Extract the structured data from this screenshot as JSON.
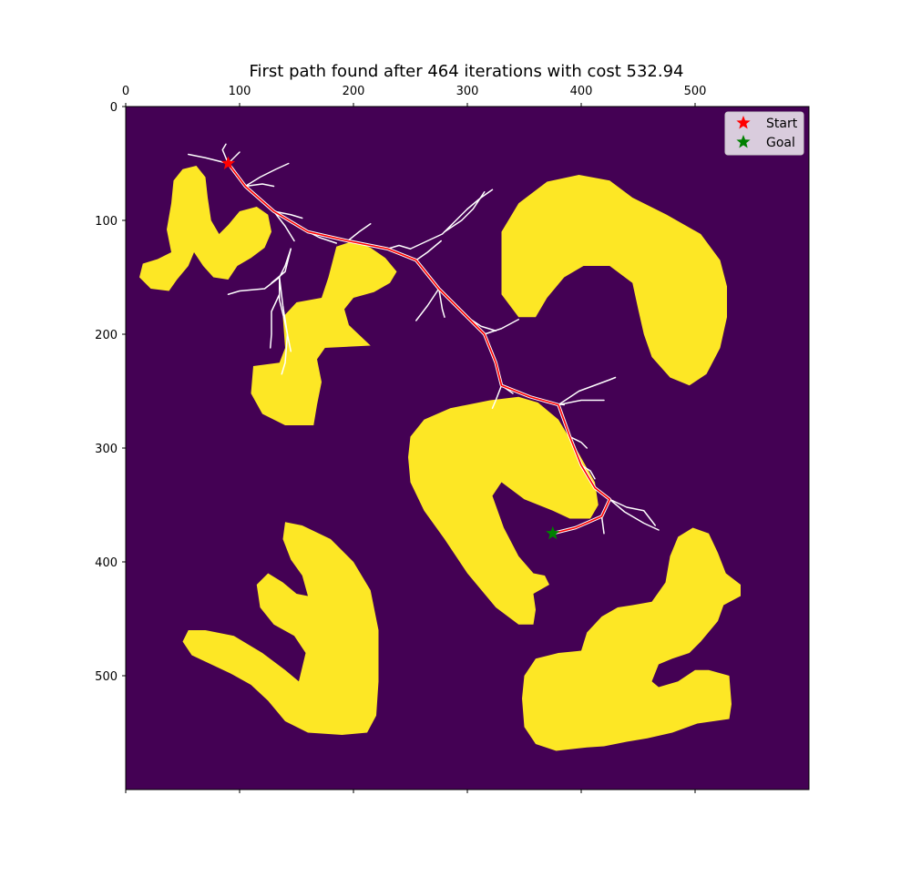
{
  "chart_data": {
    "type": "heatmap",
    "title": "First path found after 464 iterations with cost 532.94",
    "xlabel": "",
    "ylabel": "",
    "xlim": [
      0,
      600
    ],
    "ylim": [
      600,
      0
    ],
    "x_ticks": [
      0,
      100,
      200,
      300,
      400,
      500
    ],
    "y_ticks": [
      0,
      100,
      200,
      300,
      400,
      500
    ],
    "x_axis_position": "top",
    "grid": false,
    "legend": {
      "placement": "top-right",
      "entries": [
        "Start",
        "Goal"
      ]
    },
    "colors": {
      "free_space": "#440154",
      "obstacle": "#fde725",
      "tree": "#ffffff",
      "path": "#ff0000",
      "start_marker": "#ff0000",
      "goal_marker": "#008000"
    },
    "start": {
      "label": "Start",
      "x": 90,
      "y": 50
    },
    "goal": {
      "label": "Goal",
      "x": 375,
      "y": 375
    },
    "path": [
      [
        90,
        50
      ],
      [
        105,
        70
      ],
      [
        130,
        92
      ],
      [
        160,
        110
      ],
      [
        195,
        118
      ],
      [
        230,
        125
      ],
      [
        255,
        135
      ],
      [
        275,
        160
      ],
      [
        300,
        185
      ],
      [
        315,
        200
      ],
      [
        325,
        225
      ],
      [
        330,
        245
      ],
      [
        355,
        255
      ],
      [
        380,
        262
      ],
      [
        390,
        290
      ],
      [
        400,
        315
      ],
      [
        412,
        335
      ],
      [
        425,
        345
      ],
      [
        418,
        360
      ],
      [
        395,
        370
      ],
      [
        375,
        375
      ]
    ],
    "tree_branches": [
      [
        [
          90,
          50
        ],
        [
          70,
          45
        ],
        [
          55,
          42
        ]
      ],
      [
        [
          90,
          50
        ],
        [
          85,
          38
        ],
        [
          88,
          33
        ]
      ],
      [
        [
          90,
          50
        ],
        [
          100,
          40
        ]
      ],
      [
        [
          105,
          70
        ],
        [
          120,
          68
        ],
        [
          130,
          70
        ]
      ],
      [
        [
          105,
          70
        ],
        [
          118,
          62
        ],
        [
          132,
          55
        ],
        [
          143,
          50
        ]
      ],
      [
        [
          130,
          92
        ],
        [
          145,
          95
        ],
        [
          155,
          98
        ]
      ],
      [
        [
          130,
          92
        ],
        [
          140,
          105
        ],
        [
          148,
          118
        ]
      ],
      [
        [
          160,
          110
        ],
        [
          170,
          115
        ],
        [
          185,
          120
        ]
      ],
      [
        [
          145,
          125
        ],
        [
          140,
          140
        ],
        [
          135,
          150
        ],
        [
          122,
          160
        ],
        [
          100,
          162
        ],
        [
          90,
          165
        ]
      ],
      [
        [
          145,
          125
        ],
        [
          140,
          145
        ],
        [
          128,
          155
        ]
      ],
      [
        [
          135,
          150
        ],
        [
          135,
          170
        ],
        [
          140,
          190
        ],
        [
          145,
          215
        ]
      ],
      [
        [
          135,
          150
        ],
        [
          138,
          175
        ],
        [
          142,
          200
        ],
        [
          140,
          225
        ],
        [
          137,
          235
        ]
      ],
      [
        [
          135,
          165
        ],
        [
          128,
          180
        ],
        [
          128,
          200
        ],
        [
          127,
          212
        ]
      ],
      [
        [
          195,
          118
        ],
        [
          205,
          110
        ],
        [
          215,
          103
        ]
      ],
      [
        [
          230,
          125
        ],
        [
          240,
          122
        ],
        [
          250,
          125
        ]
      ],
      [
        [
          255,
          135
        ],
        [
          265,
          128
        ],
        [
          277,
          118
        ]
      ],
      [
        [
          250,
          125
        ],
        [
          265,
          118
        ],
        [
          278,
          112
        ],
        [
          290,
          100
        ],
        [
          300,
          90
        ]
      ],
      [
        [
          280,
          110
        ],
        [
          295,
          100
        ],
        [
          305,
          90
        ],
        [
          315,
          75
        ]
      ],
      [
        [
          300,
          90
        ],
        [
          312,
          80
        ],
        [
          322,
          73
        ]
      ],
      [
        [
          275,
          160
        ],
        [
          265,
          175
        ],
        [
          255,
          188
        ]
      ],
      [
        [
          275,
          160
        ],
        [
          278,
          178
        ],
        [
          280,
          185
        ]
      ],
      [
        [
          300,
          185
        ],
        [
          312,
          193
        ],
        [
          325,
          197
        ]
      ],
      [
        [
          315,
          200
        ],
        [
          330,
          195
        ],
        [
          345,
          187
        ]
      ],
      [
        [
          330,
          245
        ],
        [
          325,
          258
        ],
        [
          322,
          265
        ]
      ],
      [
        [
          330,
          245
        ],
        [
          340,
          252
        ]
      ],
      [
        [
          355,
          255
        ],
        [
          370,
          260
        ],
        [
          385,
          262
        ]
      ],
      [
        [
          380,
          262
        ],
        [
          400,
          258
        ],
        [
          420,
          258
        ]
      ],
      [
        [
          380,
          262
        ],
        [
          398,
          250
        ],
        [
          425,
          240
        ],
        [
          430,
          238
        ]
      ],
      [
        [
          390,
          290
        ],
        [
          400,
          295
        ],
        [
          405,
          300
        ]
      ],
      [
        [
          400,
          315
        ],
        [
          408,
          320
        ],
        [
          412,
          327
        ]
      ],
      [
        [
          425,
          345
        ],
        [
          440,
          352
        ],
        [
          455,
          355
        ],
        [
          465,
          368
        ]
      ],
      [
        [
          425,
          345
        ],
        [
          438,
          356
        ],
        [
          455,
          366
        ],
        [
          468,
          372
        ]
      ],
      [
        [
          418,
          360
        ],
        [
          420,
          375
        ]
      ]
    ],
    "obstacles": [
      [
        [
          50,
          55
        ],
        [
          62,
          52
        ],
        [
          70,
          62
        ],
        [
          72,
          80
        ],
        [
          75,
          100
        ],
        [
          82,
          112
        ],
        [
          90,
          104
        ],
        [
          100,
          92
        ],
        [
          115,
          88
        ],
        [
          125,
          95
        ],
        [
          128,
          110
        ],
        [
          122,
          124
        ],
        [
          110,
          133
        ],
        [
          98,
          140
        ],
        [
          90,
          152
        ],
        [
          77,
          150
        ],
        [
          68,
          140
        ],
        [
          60,
          128
        ],
        [
          55,
          140
        ],
        [
          45,
          152
        ],
        [
          38,
          162
        ],
        [
          22,
          160
        ],
        [
          12,
          150
        ],
        [
          15,
          138
        ],
        [
          28,
          134
        ],
        [
          40,
          128
        ],
        [
          36,
          108
        ],
        [
          40,
          85
        ],
        [
          42,
          65
        ]
      ],
      [
        [
          185,
          123
        ],
        [
          200,
          118
        ],
        [
          215,
          124
        ],
        [
          228,
          133
        ],
        [
          238,
          145
        ],
        [
          232,
          155
        ],
        [
          218,
          163
        ],
        [
          200,
          168
        ],
        [
          192,
          178
        ],
        [
          196,
          192
        ],
        [
          215,
          210
        ],
        [
          175,
          212
        ],
        [
          168,
          222
        ],
        [
          172,
          242
        ],
        [
          168,
          262
        ],
        [
          165,
          280
        ],
        [
          140,
          280
        ],
        [
          120,
          270
        ],
        [
          110,
          252
        ],
        [
          112,
          228
        ],
        [
          135,
          225
        ],
        [
          140,
          212
        ],
        [
          138,
          185
        ],
        [
          150,
          172
        ],
        [
          172,
          168
        ],
        [
          178,
          150
        ]
      ],
      [
        [
          330,
          110
        ],
        [
          345,
          85
        ],
        [
          370,
          66
        ],
        [
          398,
          60
        ],
        [
          425,
          65
        ],
        [
          445,
          80
        ],
        [
          475,
          95
        ],
        [
          505,
          112
        ],
        [
          522,
          135
        ],
        [
          528,
          158
        ],
        [
          528,
          185
        ],
        [
          522,
          212
        ],
        [
          510,
          235
        ],
        [
          495,
          245
        ],
        [
          478,
          238
        ],
        [
          462,
          220
        ],
        [
          455,
          200
        ],
        [
          450,
          178
        ],
        [
          445,
          155
        ],
        [
          425,
          140
        ],
        [
          402,
          140
        ],
        [
          385,
          150
        ],
        [
          370,
          168
        ],
        [
          360,
          185
        ],
        [
          345,
          185
        ],
        [
          330,
          165
        ]
      ],
      [
        [
          250,
          290
        ],
        [
          262,
          275
        ],
        [
          285,
          265
        ],
        [
          320,
          258
        ],
        [
          345,
          255
        ],
        [
          362,
          260
        ],
        [
          380,
          275
        ],
        [
          398,
          305
        ],
        [
          412,
          330
        ],
        [
          415,
          350
        ],
        [
          408,
          362
        ],
        [
          390,
          362
        ],
        [
          375,
          355
        ],
        [
          350,
          345
        ],
        [
          330,
          330
        ],
        [
          322,
          342
        ],
        [
          332,
          370
        ],
        [
          345,
          395
        ],
        [
          358,
          410
        ],
        [
          368,
          412
        ],
        [
          372,
          420
        ],
        [
          358,
          428
        ],
        [
          360,
          442
        ],
        [
          358,
          455
        ],
        [
          345,
          455
        ],
        [
          325,
          440
        ],
        [
          300,
          410
        ],
        [
          280,
          380
        ],
        [
          262,
          355
        ],
        [
          250,
          330
        ],
        [
          248,
          308
        ]
      ],
      [
        [
          140,
          365
        ],
        [
          155,
          368
        ],
        [
          180,
          380
        ],
        [
          200,
          400
        ],
        [
          215,
          425
        ],
        [
          222,
          460
        ],
        [
          222,
          505
        ],
        [
          220,
          535
        ],
        [
          212,
          550
        ],
        [
          190,
          552
        ],
        [
          160,
          550
        ],
        [
          140,
          540
        ],
        [
          125,
          522
        ],
        [
          110,
          508
        ],
        [
          92,
          498
        ],
        [
          75,
          490
        ],
        [
          58,
          482
        ],
        [
          50,
          470
        ],
        [
          55,
          460
        ],
        [
          70,
          460
        ],
        [
          95,
          465
        ],
        [
          120,
          480
        ],
        [
          140,
          495
        ],
        [
          152,
          505
        ],
        [
          158,
          480
        ],
        [
          148,
          465
        ],
        [
          130,
          455
        ],
        [
          118,
          440
        ],
        [
          115,
          420
        ],
        [
          125,
          410
        ],
        [
          138,
          418
        ],
        [
          150,
          428
        ],
        [
          160,
          430
        ],
        [
          155,
          412
        ],
        [
          145,
          398
        ],
        [
          138,
          380
        ]
      ],
      [
        [
          350,
          500
        ],
        [
          360,
          485
        ],
        [
          380,
          480
        ],
        [
          400,
          478
        ],
        [
          405,
          462
        ],
        [
          418,
          448
        ],
        [
          432,
          440
        ],
        [
          445,
          438
        ],
        [
          462,
          435
        ],
        [
          474,
          418
        ],
        [
          478,
          395
        ],
        [
          485,
          378
        ],
        [
          498,
          370
        ],
        [
          512,
          375
        ],
        [
          520,
          392
        ],
        [
          527,
          410
        ],
        [
          540,
          420
        ],
        [
          540,
          430
        ],
        [
          525,
          438
        ],
        [
          520,
          452
        ],
        [
          505,
          470
        ],
        [
          495,
          480
        ],
        [
          480,
          485
        ],
        [
          468,
          490
        ],
        [
          462,
          505
        ],
        [
          468,
          510
        ],
        [
          485,
          505
        ],
        [
          500,
          495
        ],
        [
          512,
          495
        ],
        [
          530,
          500
        ],
        [
          532,
          525
        ],
        [
          530,
          538
        ],
        [
          502,
          542
        ],
        [
          480,
          550
        ],
        [
          458,
          555
        ],
        [
          440,
          558
        ],
        [
          420,
          562
        ],
        [
          405,
          563
        ],
        [
          378,
          566
        ],
        [
          360,
          560
        ],
        [
          350,
          545
        ],
        [
          348,
          520
        ]
      ]
    ]
  }
}
